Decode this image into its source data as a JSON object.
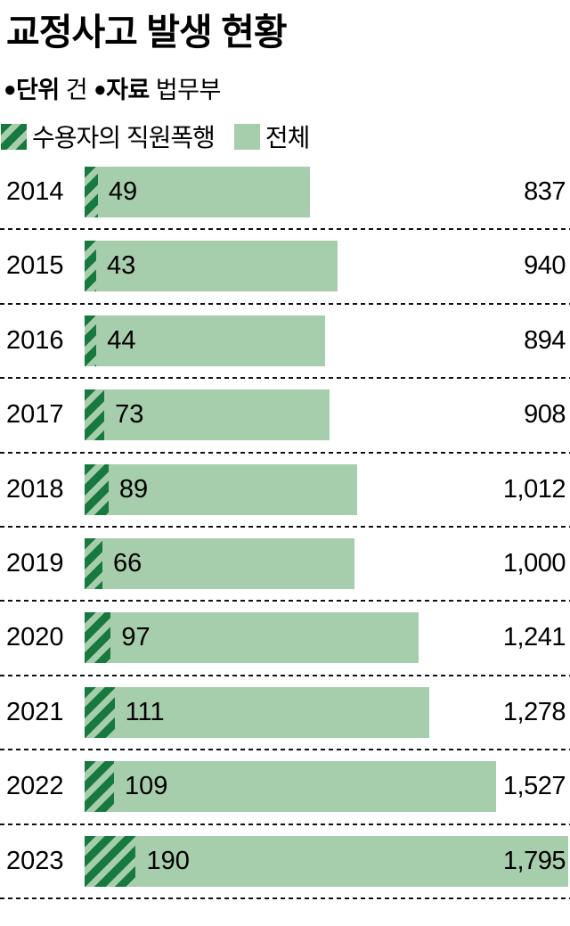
{
  "header": {
    "title": "교정사고 발생 현황",
    "bullet": "●",
    "unit_label": "단위",
    "unit_value": "건",
    "source_label": "자료",
    "source_value": "법무부"
  },
  "legend": {
    "striped_label": "수용자의 직원폭행",
    "solid_label": "전체"
  },
  "colors": {
    "light_green": "#a6cdac",
    "dark_green": "#17793d",
    "text": "#000000",
    "dash": "#111111"
  },
  "chart_data": {
    "type": "bar",
    "orientation": "horizontal",
    "title": "교정사고 발생 현황",
    "unit": "건",
    "source": "법무부",
    "categories": [
      "2014",
      "2015",
      "2016",
      "2017",
      "2018",
      "2019",
      "2020",
      "2021",
      "2022",
      "2023"
    ],
    "series": [
      {
        "name": "수용자의 직원폭행",
        "values": [
          49,
          43,
          44,
          73,
          89,
          66,
          97,
          111,
          109,
          190
        ]
      },
      {
        "name": "전체",
        "values": [
          837,
          940,
          894,
          908,
          1012,
          1000,
          1241,
          1278,
          1527,
          1795
        ]
      }
    ],
    "xmax": 1795,
    "grid": "dashed-row-separators",
    "legend_position": "top"
  }
}
